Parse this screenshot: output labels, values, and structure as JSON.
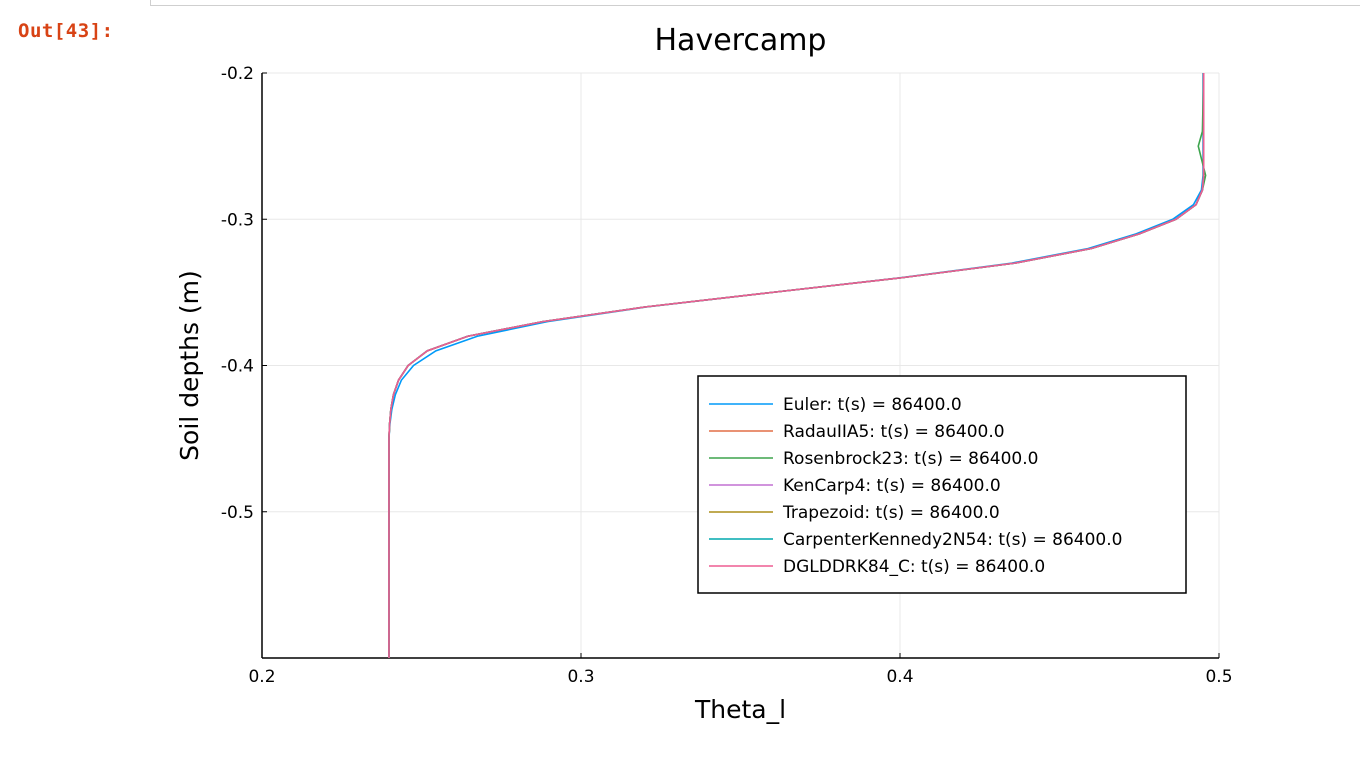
{
  "notebook": {
    "output_prompt": "Out[43]:"
  },
  "chart_data": {
    "type": "line",
    "title": "Havercamp",
    "xlabel": "Theta_l",
    "ylabel": "Soil depths (m)",
    "xlim": [
      0.2,
      0.5
    ],
    "ylim": [
      -0.6,
      -0.2
    ],
    "x_ticks": [
      0.2,
      0.3,
      0.4,
      0.5
    ],
    "x_tick_labels": [
      "0.2",
      "0.3",
      "0.4",
      "0.5"
    ],
    "y_ticks": [
      -0.2,
      -0.3,
      -0.4,
      -0.5
    ],
    "y_tick_labels": [
      "-0.2",
      "-0.3",
      "-0.4",
      "-0.5"
    ],
    "grid": true,
    "legend_position": "bottom-right",
    "series": [
      {
        "name": "Euler: t(s) = 86400.0",
        "color": "#009af9",
        "points": [
          [
            0.2398,
            -0.6
          ],
          [
            0.2398,
            -0.55
          ],
          [
            0.2398,
            -0.5
          ],
          [
            0.2398,
            -0.45
          ],
          [
            0.2401,
            -0.44
          ],
          [
            0.2407,
            -0.43
          ],
          [
            0.2418,
            -0.42
          ],
          [
            0.2437,
            -0.41
          ],
          [
            0.2475,
            -0.4
          ],
          [
            0.2545,
            -0.39
          ],
          [
            0.2675,
            -0.38
          ],
          [
            0.2895,
            -0.37
          ],
          [
            0.3205,
            -0.36
          ],
          [
            0.36,
            -0.35
          ],
          [
            0.4,
            -0.34
          ],
          [
            0.435,
            -0.33
          ],
          [
            0.459,
            -0.32
          ],
          [
            0.474,
            -0.31
          ],
          [
            0.4855,
            -0.3
          ],
          [
            0.492,
            -0.29
          ],
          [
            0.4945,
            -0.28
          ],
          [
            0.495,
            -0.27
          ],
          [
            0.495,
            -0.25
          ],
          [
            0.495,
            -0.2
          ]
        ]
      },
      {
        "name": "RadauIIA5: t(s) = 86400.0",
        "color": "#e26f46",
        "points": [
          [
            0.2398,
            -0.6
          ],
          [
            0.2398,
            -0.55
          ],
          [
            0.2398,
            -0.5
          ],
          [
            0.2398,
            -0.45
          ],
          [
            0.24,
            -0.44
          ],
          [
            0.2404,
            -0.43
          ],
          [
            0.2412,
            -0.42
          ],
          [
            0.2428,
            -0.41
          ],
          [
            0.2458,
            -0.4
          ],
          [
            0.2518,
            -0.39
          ],
          [
            0.2645,
            -0.38
          ],
          [
            0.288,
            -0.37
          ],
          [
            0.32,
            -0.36
          ],
          [
            0.36,
            -0.35
          ],
          [
            0.4005,
            -0.34
          ],
          [
            0.436,
            -0.33
          ],
          [
            0.46,
            -0.32
          ],
          [
            0.475,
            -0.31
          ],
          [
            0.4865,
            -0.3
          ],
          [
            0.4928,
            -0.29
          ],
          [
            0.4948,
            -0.28
          ],
          [
            0.4952,
            -0.27
          ],
          [
            0.4952,
            -0.25
          ],
          [
            0.4952,
            -0.2
          ]
        ]
      },
      {
        "name": "Rosenbrock23: t(s) = 86400.0",
        "color": "#3da44d",
        "points": [
          [
            0.2398,
            -0.6
          ],
          [
            0.2398,
            -0.55
          ],
          [
            0.2398,
            -0.5
          ],
          [
            0.2398,
            -0.45
          ],
          [
            0.24,
            -0.44
          ],
          [
            0.2404,
            -0.43
          ],
          [
            0.2412,
            -0.42
          ],
          [
            0.2428,
            -0.41
          ],
          [
            0.2458,
            -0.4
          ],
          [
            0.2518,
            -0.39
          ],
          [
            0.2645,
            -0.38
          ],
          [
            0.288,
            -0.37
          ],
          [
            0.32,
            -0.36
          ],
          [
            0.36,
            -0.35
          ],
          [
            0.4005,
            -0.34
          ],
          [
            0.436,
            -0.33
          ],
          [
            0.46,
            -0.32
          ],
          [
            0.475,
            -0.31
          ],
          [
            0.4865,
            -0.3
          ],
          [
            0.4928,
            -0.29
          ],
          [
            0.4948,
            -0.28
          ],
          [
            0.4958,
            -0.27
          ],
          [
            0.4935,
            -0.25
          ],
          [
            0.4948,
            -0.24
          ],
          [
            0.4952,
            -0.2
          ]
        ]
      },
      {
        "name": "KenCarp4: t(s) = 86400.0",
        "color": "#c271d2",
        "points": [
          [
            0.2398,
            -0.6
          ],
          [
            0.2398,
            -0.55
          ],
          [
            0.2398,
            -0.5
          ],
          [
            0.2398,
            -0.45
          ],
          [
            0.24,
            -0.44
          ],
          [
            0.2404,
            -0.43
          ],
          [
            0.2412,
            -0.42
          ],
          [
            0.2428,
            -0.41
          ],
          [
            0.2458,
            -0.4
          ],
          [
            0.2518,
            -0.39
          ],
          [
            0.2645,
            -0.38
          ],
          [
            0.288,
            -0.37
          ],
          [
            0.32,
            -0.36
          ],
          [
            0.36,
            -0.35
          ],
          [
            0.4005,
            -0.34
          ],
          [
            0.436,
            -0.33
          ],
          [
            0.46,
            -0.32
          ],
          [
            0.475,
            -0.31
          ],
          [
            0.4865,
            -0.3
          ],
          [
            0.4928,
            -0.29
          ],
          [
            0.4948,
            -0.28
          ],
          [
            0.4952,
            -0.27
          ],
          [
            0.4952,
            -0.25
          ],
          [
            0.4952,
            -0.2
          ]
        ]
      },
      {
        "name": "Trapezoid: t(s) = 86400.0",
        "color": "#ac8d18",
        "points": [
          [
            0.2398,
            -0.6
          ],
          [
            0.2398,
            -0.55
          ],
          [
            0.2398,
            -0.5
          ],
          [
            0.2398,
            -0.45
          ],
          [
            0.24,
            -0.44
          ],
          [
            0.2404,
            -0.43
          ],
          [
            0.2412,
            -0.42
          ],
          [
            0.2428,
            -0.41
          ],
          [
            0.2458,
            -0.4
          ],
          [
            0.2518,
            -0.39
          ],
          [
            0.2645,
            -0.38
          ],
          [
            0.288,
            -0.37
          ],
          [
            0.32,
            -0.36
          ],
          [
            0.36,
            -0.35
          ],
          [
            0.4005,
            -0.34
          ],
          [
            0.436,
            -0.33
          ],
          [
            0.46,
            -0.32
          ],
          [
            0.475,
            -0.31
          ],
          [
            0.4865,
            -0.3
          ],
          [
            0.4928,
            -0.29
          ],
          [
            0.4948,
            -0.28
          ],
          [
            0.4952,
            -0.27
          ],
          [
            0.4952,
            -0.25
          ],
          [
            0.4952,
            -0.2
          ]
        ]
      },
      {
        "name": "CarpenterKennedy2N54: t(s) = 86400.0",
        "color": "#00a9ad",
        "points": [
          [
            0.2398,
            -0.6
          ],
          [
            0.2398,
            -0.55
          ],
          [
            0.2398,
            -0.5
          ],
          [
            0.2398,
            -0.45
          ],
          [
            0.24,
            -0.44
          ],
          [
            0.2404,
            -0.43
          ],
          [
            0.2412,
            -0.42
          ],
          [
            0.2428,
            -0.41
          ],
          [
            0.2458,
            -0.4
          ],
          [
            0.2518,
            -0.39
          ],
          [
            0.2645,
            -0.38
          ],
          [
            0.288,
            -0.37
          ],
          [
            0.32,
            -0.36
          ],
          [
            0.36,
            -0.35
          ],
          [
            0.4005,
            -0.34
          ],
          [
            0.436,
            -0.33
          ],
          [
            0.46,
            -0.32
          ],
          [
            0.475,
            -0.31
          ],
          [
            0.4865,
            -0.3
          ],
          [
            0.4928,
            -0.29
          ],
          [
            0.4948,
            -0.28
          ],
          [
            0.4952,
            -0.27
          ],
          [
            0.4952,
            -0.25
          ],
          [
            0.4952,
            -0.2
          ]
        ]
      },
      {
        "name": "DGLDDRK84_C: t(s) = 86400.0",
        "color": "#ed5d92",
        "points": [
          [
            0.2398,
            -0.6
          ],
          [
            0.2398,
            -0.55
          ],
          [
            0.2398,
            -0.5
          ],
          [
            0.2398,
            -0.45
          ],
          [
            0.24,
            -0.44
          ],
          [
            0.2404,
            -0.43
          ],
          [
            0.2412,
            -0.42
          ],
          [
            0.2428,
            -0.41
          ],
          [
            0.2458,
            -0.4
          ],
          [
            0.2518,
            -0.39
          ],
          [
            0.2645,
            -0.38
          ],
          [
            0.288,
            -0.37
          ],
          [
            0.32,
            -0.36
          ],
          [
            0.36,
            -0.35
          ],
          [
            0.4005,
            -0.34
          ],
          [
            0.436,
            -0.33
          ],
          [
            0.46,
            -0.32
          ],
          [
            0.475,
            -0.31
          ],
          [
            0.4865,
            -0.3
          ],
          [
            0.4928,
            -0.29
          ],
          [
            0.4948,
            -0.28
          ],
          [
            0.4952,
            -0.27
          ],
          [
            0.4952,
            -0.25
          ],
          [
            0.4952,
            -0.2
          ]
        ]
      }
    ]
  }
}
